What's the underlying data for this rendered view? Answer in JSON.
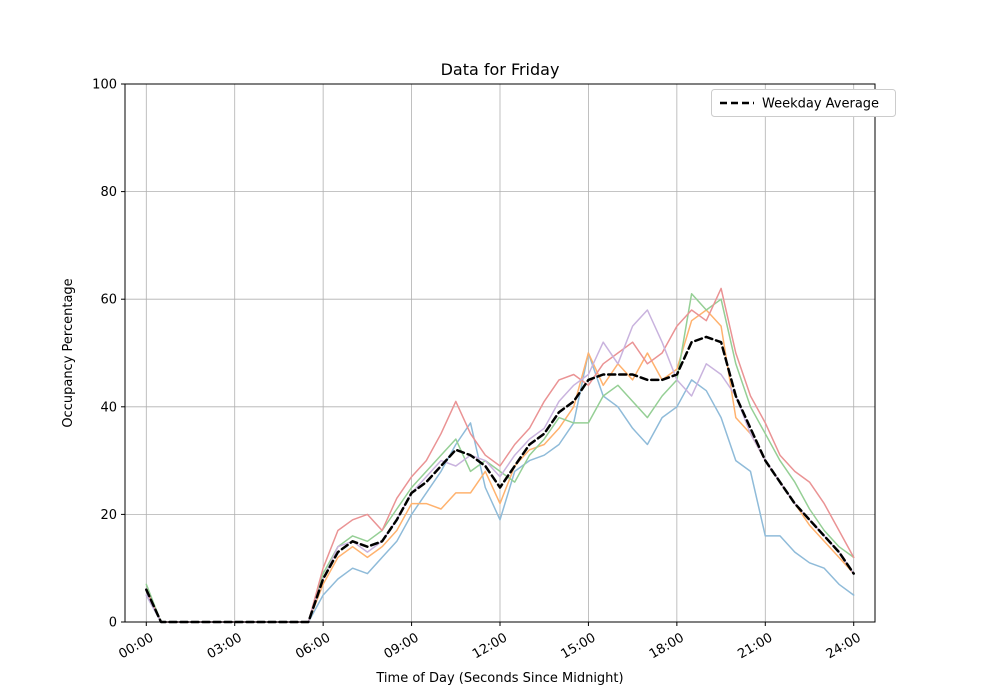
{
  "chart_data": {
    "type": "line",
    "title": "Data for Friday",
    "xlabel": "Time of Day (Seconds Since Midnight)",
    "ylabel": "Occupancy Percentage",
    "grid": true,
    "grid_color": "#b0b0b0",
    "background_color": "#ffffff",
    "ylim": [
      0,
      100
    ],
    "y_ticks": [
      0,
      20,
      40,
      60,
      80,
      100
    ],
    "x_ticks_hours": [
      0,
      3,
      6,
      9,
      12,
      15,
      18,
      21,
      24
    ],
    "x_tick_labels": [
      "00:00",
      "03:00",
      "06:00",
      "09:00",
      "12:00",
      "15:00",
      "18:00",
      "21:00",
      "24:00"
    ],
    "xlim_seconds": [
      -2600,
      89000
    ],
    "legend": {
      "position": "upper right",
      "entries": [
        {
          "label": "Weekday Average",
          "color": "#000000",
          "dash": true
        }
      ]
    },
    "x_hours": [
      0,
      0.5,
      1,
      1.5,
      2,
      2.5,
      3,
      3.5,
      4,
      4.5,
      5,
      5.5,
      6,
      6.5,
      7,
      7.5,
      8,
      8.5,
      9,
      9.5,
      10,
      10.5,
      11,
      11.5,
      12,
      12.5,
      13,
      13.5,
      14,
      14.5,
      15,
      15.5,
      16,
      16.5,
      17,
      17.5,
      18,
      18.5,
      19,
      19.5,
      20,
      20.5,
      21,
      21.5,
      22,
      22.5,
      23,
      23.5,
      24
    ],
    "series": [
      {
        "name": "friday-series-1",
        "color": "#8fbbd9",
        "width": 1.5,
        "dash": false,
        "values": [
          5,
          0,
          0,
          0,
          0,
          0,
          0,
          0,
          0,
          0,
          0,
          0,
          5,
          8,
          10,
          9,
          12,
          15,
          20,
          24,
          28,
          33,
          37,
          25,
          19,
          28,
          30,
          31,
          33,
          37,
          50,
          42,
          40,
          36,
          33,
          38,
          40,
          45,
          43,
          38,
          30,
          28,
          16,
          16,
          13,
          11,
          10,
          7,
          5
        ]
      },
      {
        "name": "friday-series-2",
        "color": "#ffb26e",
        "width": 1.5,
        "dash": false,
        "values": [
          6,
          0,
          0,
          0,
          0,
          0,
          0,
          0,
          0,
          0,
          0,
          0,
          7,
          12,
          14,
          12,
          14,
          17,
          22,
          22,
          21,
          24,
          24,
          28,
          22,
          29,
          32,
          33,
          36,
          40,
          50,
          44,
          48,
          45,
          50,
          45,
          47,
          56,
          58,
          55,
          38,
          35,
          30,
          26,
          22,
          18,
          15,
          12,
          9
        ]
      },
      {
        "name": "friday-series-3",
        "color": "#95cf95",
        "width": 1.5,
        "dash": false,
        "values": [
          7,
          0,
          0,
          0,
          0,
          0,
          0,
          0,
          0,
          0,
          0,
          0,
          9,
          14,
          16,
          15,
          17,
          21,
          25,
          28,
          31,
          34,
          28,
          30,
          28,
          26,
          31,
          34,
          38,
          37,
          37,
          42,
          44,
          41,
          38,
          42,
          45,
          61,
          58,
          60,
          48,
          40,
          35,
          30,
          26,
          21,
          17,
          14,
          12
        ]
      },
      {
        "name": "friday-series-4",
        "color": "#ea9394",
        "width": 1.5,
        "dash": false,
        "values": [
          6,
          0,
          0,
          0,
          0,
          0,
          0,
          0,
          0,
          0,
          0,
          0,
          10,
          17,
          19,
          20,
          17,
          23,
          27,
          30,
          35,
          41,
          35,
          31,
          29,
          33,
          36,
          41,
          45,
          46,
          44,
          48,
          50,
          52,
          48,
          50,
          55,
          58,
          56,
          62,
          50,
          42,
          37,
          31,
          28,
          26,
          22,
          17,
          12
        ]
      },
      {
        "name": "friday-series-5",
        "color": "#c9b3de",
        "width": 1.5,
        "dash": false,
        "values": [
          5,
          0,
          0,
          0,
          0,
          0,
          0,
          0,
          0,
          0,
          0,
          0,
          8,
          14,
          15,
          13,
          15,
          19,
          24,
          27,
          30,
          29,
          31,
          30,
          27,
          31,
          34,
          36,
          41,
          44,
          46,
          52,
          48,
          55,
          58,
          52,
          45,
          42,
          48,
          46,
          42,
          35,
          30,
          26,
          22,
          19,
          16,
          13,
          9
        ]
      },
      {
        "name": "weekday-average",
        "color": "#000000",
        "width": 2.5,
        "dash": true,
        "values": [
          6,
          0,
          0,
          0,
          0,
          0,
          0,
          0,
          0,
          0,
          0,
          0,
          8,
          13,
          15,
          14,
          15,
          19,
          24,
          26,
          29,
          32,
          31,
          29,
          25,
          29,
          33,
          35,
          39,
          41,
          45,
          46,
          46,
          46,
          45,
          45,
          46,
          52,
          53,
          52,
          42,
          36,
          30,
          26,
          22,
          19,
          16,
          13,
          9
        ]
      }
    ]
  }
}
